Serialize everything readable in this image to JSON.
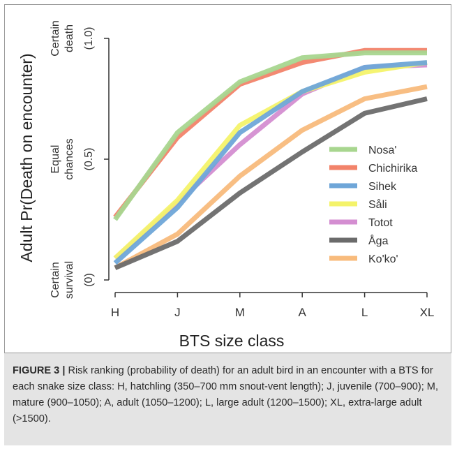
{
  "chart_data": {
    "type": "line",
    "title": "",
    "xlabel": "BTS size class",
    "ylabel": "Adult Pr(Death on encounter)",
    "categories": [
      "H",
      "J",
      "M",
      "A",
      "L",
      "XL"
    ],
    "ylim": [
      0,
      1
    ],
    "yticks": [
      {
        "value": 1.0,
        "label": "Certain\ndeath",
        "sub": "(1.0)"
      },
      {
        "value": 0.5,
        "label": "Equal\nchances",
        "sub": "(0.5)"
      },
      {
        "value": 0.0,
        "label": "Certain\nsurvival",
        "sub": "(0)"
      }
    ],
    "legend_position": "center-right",
    "grid": false,
    "series": [
      {
        "name": "Nosa'",
        "color": "#a8d68f",
        "values": [
          0.25,
          0.61,
          0.82,
          0.92,
          0.94,
          0.94
        ]
      },
      {
        "name": "Chichirika",
        "color": "#f2836a",
        "values": [
          0.26,
          0.59,
          0.81,
          0.9,
          0.95,
          0.95
        ]
      },
      {
        "name": "Sihek",
        "color": "#6fa6d8",
        "values": [
          0.07,
          0.3,
          0.61,
          0.78,
          0.88,
          0.9
        ]
      },
      {
        "name": "Såli",
        "color": "#f4f36a",
        "values": [
          0.09,
          0.33,
          0.64,
          0.78,
          0.86,
          0.9
        ]
      },
      {
        "name": "Totot",
        "color": "#d48ed1",
        "values": [
          0.09,
          0.32,
          0.56,
          0.77,
          0.88,
          0.89
        ]
      },
      {
        "name": "Åga",
        "color": "#6b6b6b",
        "values": [
          0.05,
          0.16,
          0.36,
          0.53,
          0.69,
          0.75
        ]
      },
      {
        "name": "Ko'ko'",
        "color": "#f8bb7c",
        "values": [
          0.05,
          0.19,
          0.43,
          0.62,
          0.75,
          0.8
        ]
      }
    ]
  },
  "caption": {
    "label": "FIGURE 3 |",
    "text": " Risk ranking (probability of death) for an adult bird in an encounter with a BTS for each snake size class: H, hatchling (350–700 mm snout-vent length); J, juvenile (700–900); M, mature (900–1050); A, adult (1050–1200); L, large adult (1200–1500); XL, extra-large adult (>1500)."
  }
}
